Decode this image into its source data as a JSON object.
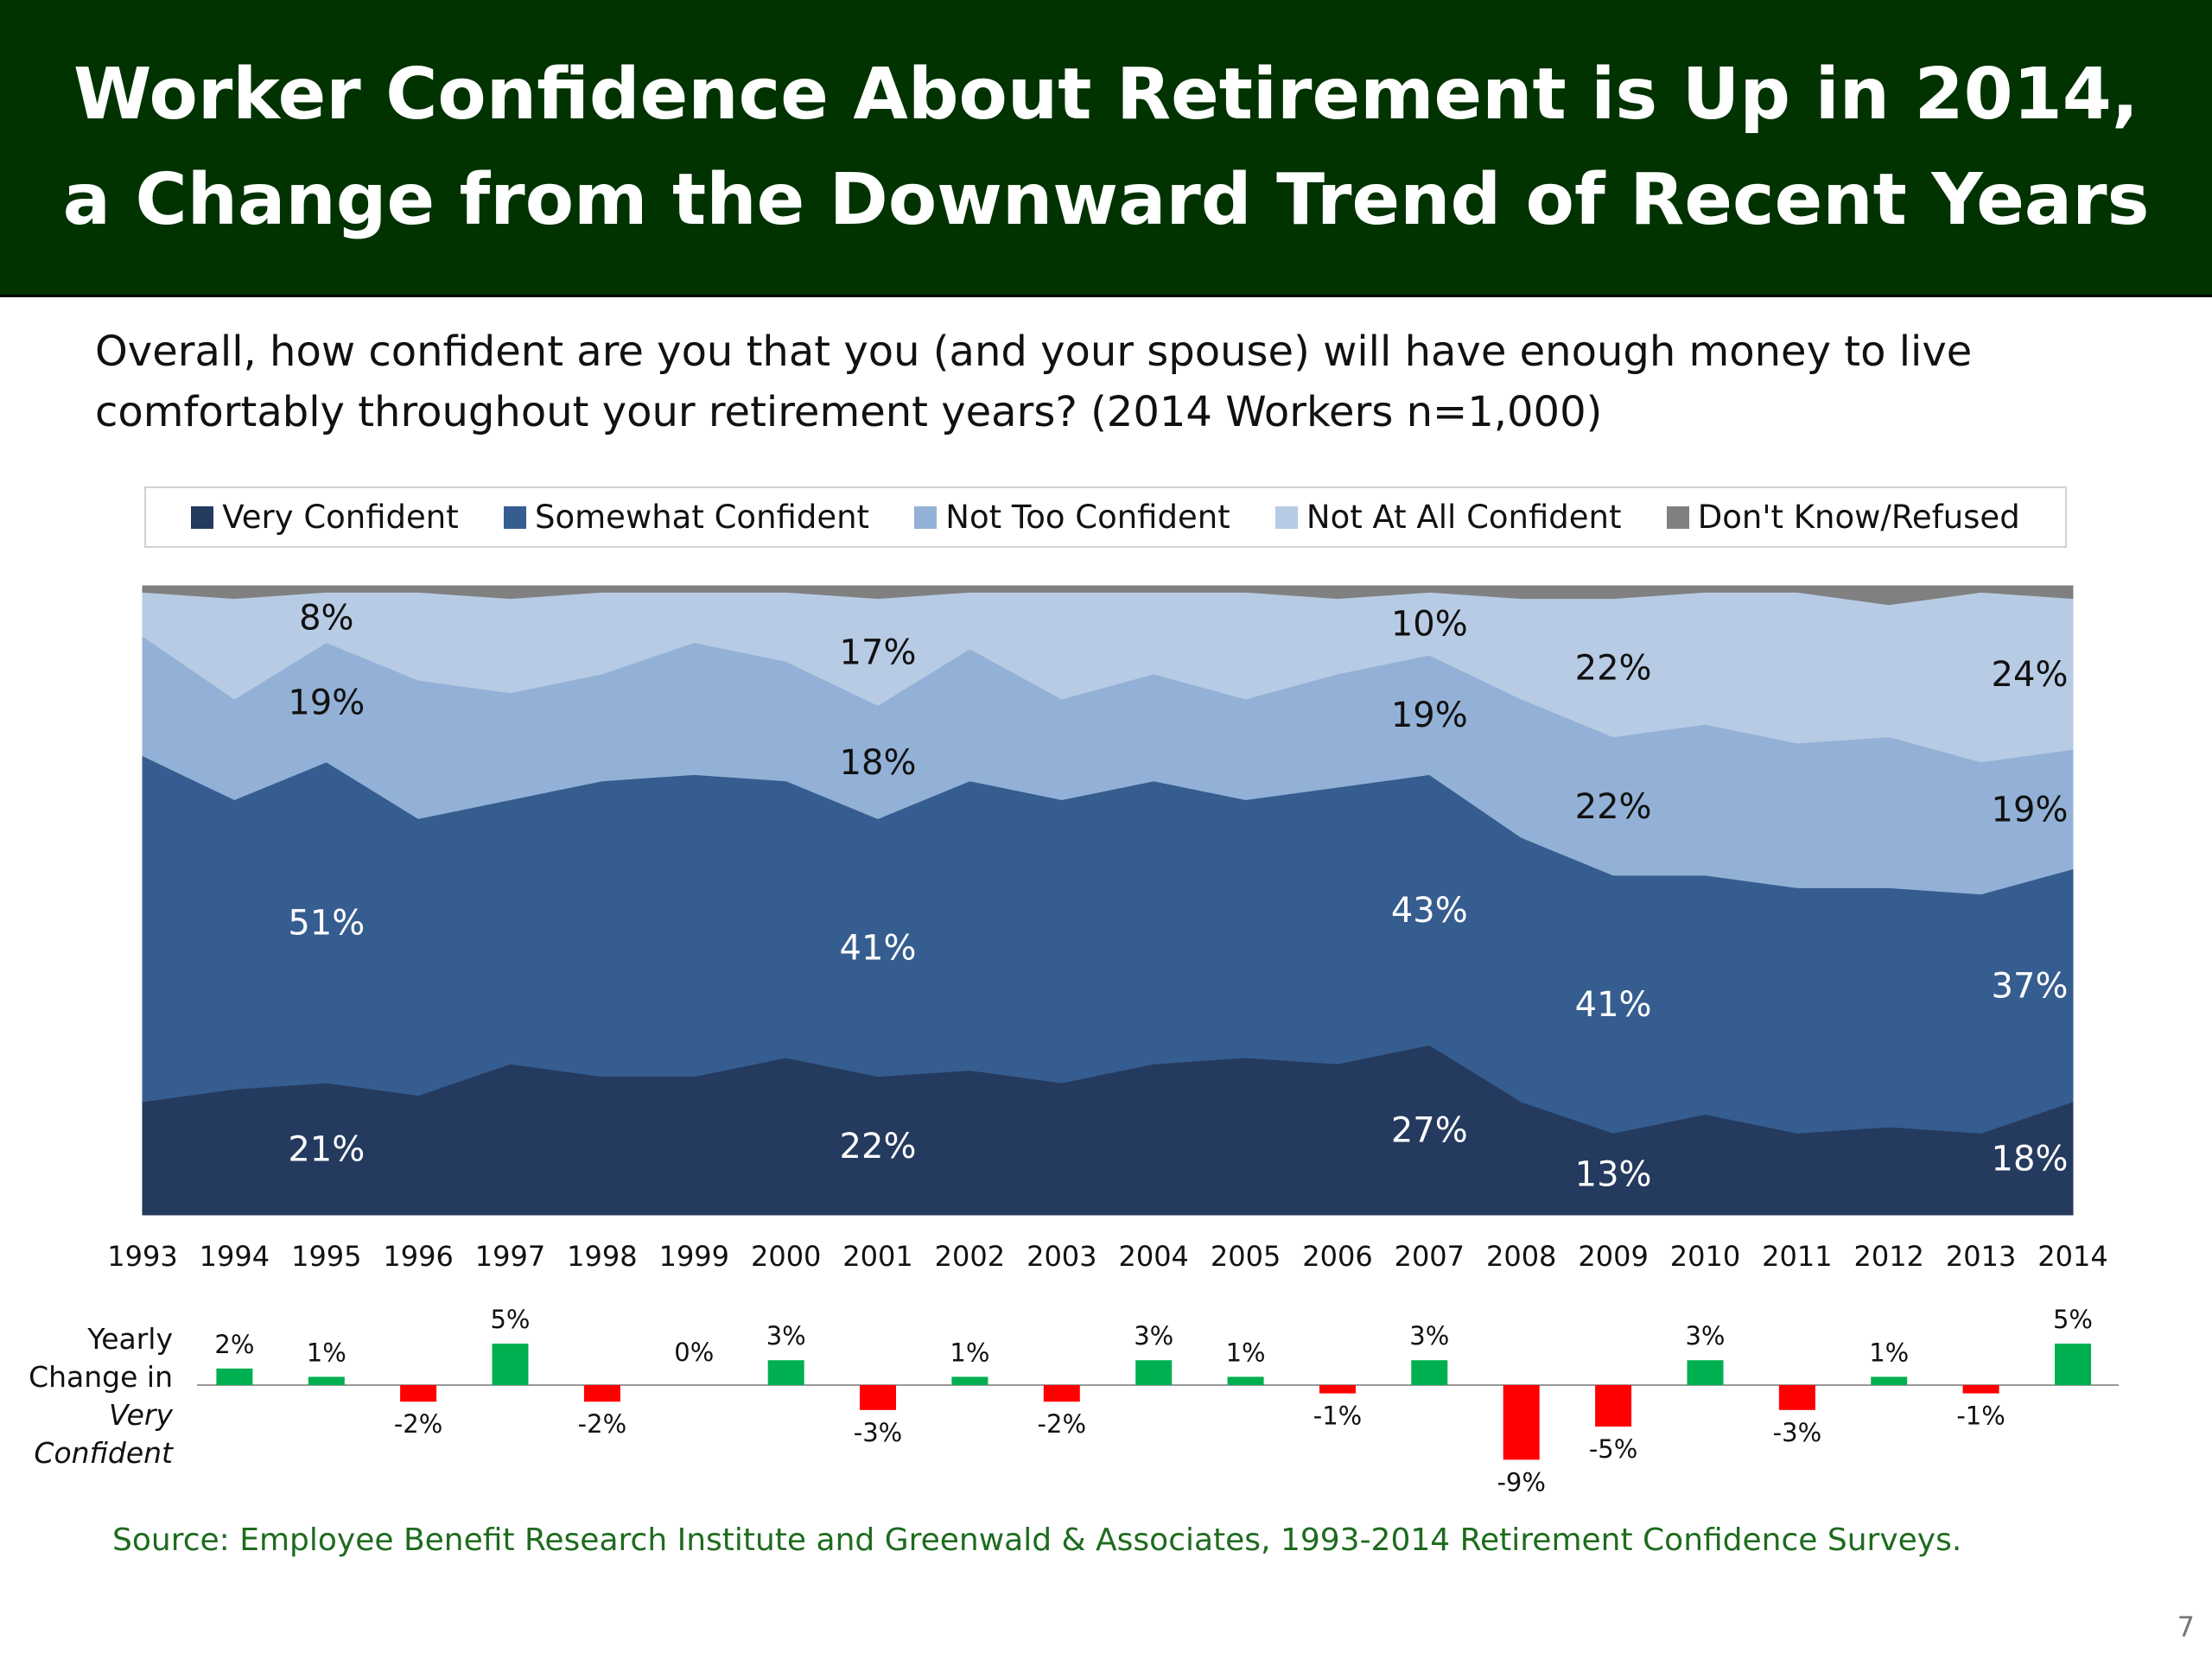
{
  "slide": {
    "title": "Worker Confidence About Retirement is Up in 2014, a Change from the Downward Trend of Recent Years",
    "question": "Overall, how confident are you that you (and your spouse) will have enough money to live comfortably throughout your retirement years? (2014 Workers n=1,000)",
    "bar_label_line1": "Yearly",
    "bar_label_line2": "Change in",
    "bar_label_line3": "Very",
    "bar_label_line4": "Confident",
    "source": "Source:  Employee Benefit Research Institute and Greenwald & Associates, 1993-2014 Retirement Confidence Surveys.",
    "page_number": "7",
    "colors": {
      "header_bg": "#003300",
      "very_confident": "#243a5e",
      "somewhat_confident": "#365d8f",
      "not_too_confident": "#93b1d6",
      "not_at_all_confident": "#b7cbe4",
      "dont_know": "#808080",
      "positive_bar": "#00b050",
      "negative_bar": "#ff0000",
      "source_text": "#1e6b1e"
    }
  },
  "chart_data": [
    {
      "type": "area",
      "stacked": true,
      "title": "",
      "x": [
        "1993",
        "1994",
        "1995",
        "1996",
        "1997",
        "1998",
        "1999",
        "2000",
        "2001",
        "2002",
        "2003",
        "2004",
        "2005",
        "2006",
        "2007",
        "2008",
        "2009",
        "2010",
        "2011",
        "2012",
        "2013",
        "2014"
      ],
      "ylim": [
        0,
        100
      ],
      "legend_position": "top",
      "series": [
        {
          "name": "Very Confident",
          "values": [
            18,
            20,
            21,
            19,
            24,
            22,
            22,
            25,
            22,
            23,
            21,
            24,
            25,
            24,
            27,
            18,
            13,
            16,
            13,
            14,
            13,
            18
          ]
        },
        {
          "name": "Somewhat Confident",
          "values": [
            55,
            46,
            51,
            44,
            42,
            47,
            48,
            44,
            41,
            46,
            45,
            45,
            41,
            44,
            43,
            42,
            41,
            38,
            39,
            38,
            38,
            37
          ]
        },
        {
          "name": "Not Too Confident",
          "values": [
            19,
            16,
            19,
            22,
            17,
            17,
            21,
            19,
            18,
            21,
            16,
            17,
            16,
            18,
            19,
            22,
            22,
            24,
            23,
            24,
            21,
            19
          ]
        },
        {
          "name": "Not At All Confident",
          "values": [
            7,
            16,
            8,
            14,
            15,
            13,
            8,
            11,
            17,
            9,
            17,
            13,
            17,
            12,
            10,
            16,
            22,
            21,
            24,
            21,
            27,
            24
          ]
        },
        {
          "name": "Don't Know/Refused",
          "values": [
            1,
            2,
            1,
            1,
            2,
            1,
            1,
            1,
            2,
            1,
            1,
            1,
            1,
            2,
            1,
            2,
            2,
            1,
            1,
            3,
            1,
            2
          ]
        }
      ],
      "data_labels": [
        {
          "series": "Very Confident",
          "year": "1995",
          "text": "21%"
        },
        {
          "series": "Very Confident",
          "year": "2001",
          "text": "22%"
        },
        {
          "series": "Very Confident",
          "year": "2007",
          "text": "27%"
        },
        {
          "series": "Very Confident",
          "year": "2009",
          "text": "13%"
        },
        {
          "series": "Very Confident",
          "year": "2014",
          "text": "18%"
        },
        {
          "series": "Somewhat Confident",
          "year": "1995",
          "text": "51%"
        },
        {
          "series": "Somewhat Confident",
          "year": "2001",
          "text": "41%"
        },
        {
          "series": "Somewhat Confident",
          "year": "2007",
          "text": "43%"
        },
        {
          "series": "Somewhat Confident",
          "year": "2009",
          "text": "41%"
        },
        {
          "series": "Somewhat Confident",
          "year": "2014",
          "text": "37%"
        },
        {
          "series": "Not Too Confident",
          "year": "1995",
          "text": "19%"
        },
        {
          "series": "Not Too Confident",
          "year": "2001",
          "text": "18%"
        },
        {
          "series": "Not Too Confident",
          "year": "2007",
          "text": "19%"
        },
        {
          "series": "Not Too Confident",
          "year": "2009",
          "text": "22%"
        },
        {
          "series": "Not Too Confident",
          "year": "2014",
          "text": "19%"
        },
        {
          "series": "Not At All Confident",
          "year": "1995",
          "text": "8%"
        },
        {
          "series": "Not At All Confident",
          "year": "2001",
          "text": "17%"
        },
        {
          "series": "Not At All Confident",
          "year": "2007",
          "text": "10%"
        },
        {
          "series": "Not At All Confident",
          "year": "2009",
          "text": "22%"
        },
        {
          "series": "Not At All Confident",
          "year": "2014",
          "text": "24%"
        }
      ]
    },
    {
      "type": "bar",
      "title": "",
      "categories": [
        "1993",
        "1994",
        "1995",
        "1996",
        "1997",
        "1998",
        "1999",
        "2000",
        "2001",
        "2002",
        "2003",
        "2004",
        "2005",
        "2006",
        "2007",
        "2008",
        "2009",
        "2010",
        "2011",
        "2012",
        "2013",
        "2014"
      ],
      "values": [
        null,
        2,
        1,
        -2,
        5,
        -2,
        0,
        3,
        -3,
        1,
        -2,
        3,
        1,
        -1,
        3,
        -9,
        -5,
        3,
        -3,
        1,
        -1,
        5
      ],
      "value_labels": [
        "",
        "2%",
        "1%",
        "-2%",
        "5%",
        "-2%",
        "0%",
        "3%",
        "-3%",
        "1%",
        "-2%",
        "3%",
        "1%",
        "-1%",
        "3%",
        "-9%",
        "-5%",
        "3%",
        "-3%",
        "1%",
        "-1%",
        "5%"
      ],
      "ylim": [
        -10,
        6
      ]
    }
  ]
}
